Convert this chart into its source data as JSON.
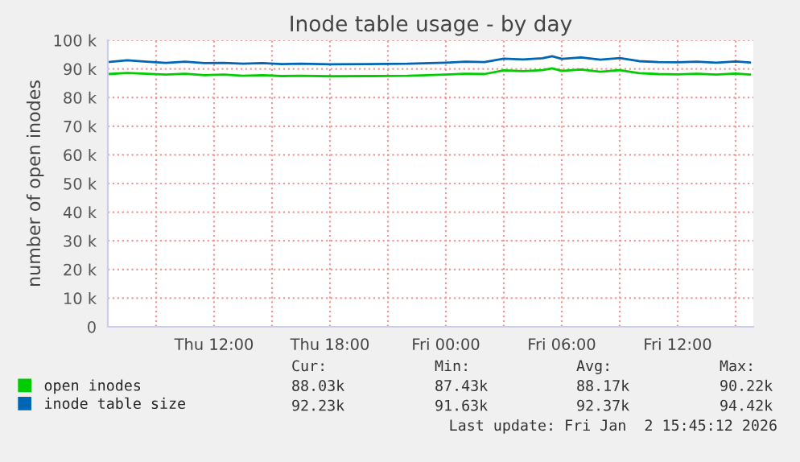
{
  "chart_data": {
    "type": "line",
    "title": "Inode table usage - by day",
    "ylabel": "number of open inodes",
    "x": [
      "2026-01-01T06:30",
      "2026-01-01T07:30",
      "2026-01-01T08:30",
      "2026-01-01T09:30",
      "2026-01-01T10:30",
      "2026-01-01T11:30",
      "2026-01-01T12:30",
      "2026-01-01T13:30",
      "2026-01-01T14:30",
      "2026-01-01T15:30",
      "2026-01-01T16:30",
      "2026-01-01T18:00",
      "2026-01-01T20:00",
      "2026-01-01T22:00",
      "2026-01-02T00:00",
      "2026-01-02T01:00",
      "2026-01-02T02:00",
      "2026-01-02T03:00",
      "2026-01-02T04:00",
      "2026-01-02T05:00",
      "2026-01-02T05:30",
      "2026-01-02T06:00",
      "2026-01-02T07:00",
      "2026-01-02T08:00",
      "2026-01-02T09:00",
      "2026-01-02T10:00",
      "2026-01-02T11:00",
      "2026-01-02T12:00",
      "2026-01-02T13:00",
      "2026-01-02T14:00",
      "2026-01-02T15:00",
      "2026-01-02T15:45"
    ],
    "series": [
      {
        "name": "open inodes",
        "color": "#00cc00",
        "values": [
          88200,
          88600,
          88300,
          88000,
          88300,
          87800,
          88000,
          87600,
          87800,
          87500,
          87600,
          87430,
          87500,
          87600,
          88000,
          88300,
          88200,
          89500,
          89200,
          89600,
          90220,
          89300,
          89800,
          89000,
          89600,
          88500,
          88200,
          88100,
          88300,
          88000,
          88400,
          88030
        ]
      },
      {
        "name": "inode table size",
        "color": "#0066b3",
        "values": [
          92400,
          93000,
          92500,
          92100,
          92500,
          92000,
          92100,
          91800,
          92000,
          91700,
          91800,
          91630,
          91700,
          91800,
          92200,
          92500,
          92400,
          93600,
          93300,
          93700,
          94420,
          93500,
          94000,
          93200,
          93800,
          92700,
          92400,
          92300,
          92500,
          92200,
          92600,
          92230
        ]
      }
    ],
    "xlim": [
      "2026-01-01T06:30",
      "2026-01-02T15:55"
    ],
    "xticks": [
      {
        "value": "2026-01-01T09:00",
        "label": null
      },
      {
        "value": "2026-01-01T12:00",
        "label": "Thu 12:00"
      },
      {
        "value": "2026-01-01T15:00",
        "label": null
      },
      {
        "value": "2026-01-01T18:00",
        "label": "Thu 18:00"
      },
      {
        "value": "2026-01-01T21:00",
        "label": null
      },
      {
        "value": "2026-01-02T00:00",
        "label": "Fri 00:00"
      },
      {
        "value": "2026-01-02T03:00",
        "label": null
      },
      {
        "value": "2026-01-02T06:00",
        "label": "Fri 06:00"
      },
      {
        "value": "2026-01-02T09:00",
        "label": null
      },
      {
        "value": "2026-01-02T12:00",
        "label": "Fri 12:00"
      },
      {
        "value": "2026-01-02T15:00",
        "label": null
      }
    ],
    "ylim": [
      0,
      100000
    ],
    "yticks": [
      0,
      {
        "value": 10000,
        "label": "10 k"
      },
      {
        "value": 20000,
        "label": "20 k"
      },
      {
        "value": 30000,
        "label": "30 k"
      },
      {
        "value": 40000,
        "label": "40 k"
      },
      {
        "value": 50000,
        "label": "50 k"
      },
      {
        "value": 60000,
        "label": "60 k"
      },
      {
        "value": 70000,
        "label": "70 k"
      },
      {
        "value": 80000,
        "label": "80 k"
      },
      {
        "value": 90000,
        "label": "90 k"
      },
      {
        "value": 100000,
        "label": "100 k"
      }
    ],
    "grid": true,
    "legend": "bottom left",
    "annotations": [
      "Cur:",
      "Min:",
      "Avg:",
      "Max:",
      "88.03k",
      "87.43k",
      "88.17k",
      "90.22k",
      "92.23k",
      "91.63k",
      "92.37k",
      "94.42k",
      "Last update: Fri Jan  2 15:45:12 2026"
    ]
  }
}
